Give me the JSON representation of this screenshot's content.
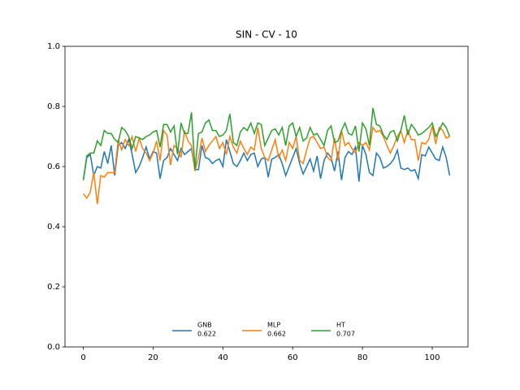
{
  "chart_data": {
    "type": "line",
    "title": "SIN - CV - 10",
    "x": [
      0,
      1,
      2,
      3,
      4,
      5,
      6,
      7,
      8,
      9,
      10,
      11,
      12,
      13,
      14,
      15,
      16,
      17,
      18,
      19,
      20,
      21,
      22,
      23,
      24,
      25,
      26,
      27,
      28,
      29,
      30,
      31,
      32,
      33,
      34,
      35,
      36,
      37,
      38,
      39,
      40,
      41,
      42,
      43,
      44,
      45,
      46,
      47,
      48,
      49,
      50,
      51,
      52,
      53,
      54,
      55,
      56,
      57,
      58,
      59,
      60,
      61,
      62,
      63,
      64,
      65,
      66,
      67,
      68,
      69,
      70,
      71,
      72,
      73,
      74,
      75,
      76,
      77,
      78,
      79,
      80,
      81,
      82,
      83,
      84,
      85,
      86,
      87,
      88,
      89,
      90,
      91,
      92,
      93,
      94,
      95,
      96,
      97,
      98,
      99,
      100,
      101,
      102,
      103,
      104,
      105
    ],
    "series": [
      {
        "name": "GNB",
        "score": 0.622,
        "color": "#1f77b4",
        "values": [
          0.555,
          0.63,
          0.64,
          0.57,
          0.6,
          0.595,
          0.65,
          0.61,
          0.67,
          0.57,
          0.67,
          0.68,
          0.66,
          0.69,
          0.64,
          0.58,
          0.6,
          0.63,
          0.665,
          0.625,
          0.65,
          0.645,
          0.56,
          0.62,
          0.63,
          0.66,
          0.64,
          0.62,
          0.66,
          0.64,
          0.65,
          0.66,
          0.59,
          0.59,
          0.67,
          0.63,
          0.625,
          0.61,
          0.62,
          0.625,
          0.6,
          0.69,
          0.65,
          0.61,
          0.6,
          0.62,
          0.645,
          0.62,
          0.64,
          0.645,
          0.6,
          0.625,
          0.63,
          0.565,
          0.625,
          0.63,
          0.64,
          0.61,
          0.57,
          0.6,
          0.63,
          0.66,
          0.61,
          0.575,
          0.6,
          0.625,
          0.585,
          0.635,
          0.56,
          0.62,
          0.645,
          0.63,
          0.585,
          0.65,
          0.555,
          0.63,
          0.65,
          0.64,
          0.665,
          0.55,
          0.67,
          0.64,
          0.58,
          0.57,
          0.645,
          0.63,
          0.595,
          0.6,
          0.61,
          0.625,
          0.655,
          0.595,
          0.59,
          0.595,
          0.585,
          0.59,
          0.56,
          0.64,
          0.635,
          0.665,
          0.645,
          0.625,
          0.62,
          0.665,
          0.63,
          0.57
        ]
      },
      {
        "name": "MLP",
        "score": 0.662,
        "color": "#ff7f0e",
        "values": [
          0.51,
          0.495,
          0.515,
          0.58,
          0.475,
          0.57,
          0.565,
          0.58,
          0.58,
          0.58,
          0.69,
          0.655,
          0.69,
          0.67,
          0.7,
          0.65,
          0.695,
          0.66,
          0.645,
          0.62,
          0.645,
          0.685,
          0.62,
          0.72,
          0.705,
          0.605,
          0.67,
          0.66,
          0.63,
          0.72,
          0.685,
          0.67,
          0.585,
          0.63,
          0.695,
          0.65,
          0.67,
          0.685,
          0.7,
          0.66,
          0.68,
          0.64,
          0.7,
          0.665,
          0.645,
          0.685,
          0.66,
          0.64,
          0.665,
          0.655,
          0.73,
          0.66,
          0.63,
          0.62,
          0.655,
          0.69,
          0.63,
          0.655,
          0.62,
          0.68,
          0.66,
          0.7,
          0.62,
          0.61,
          0.655,
          0.695,
          0.7,
          0.68,
          0.66,
          0.665,
          0.63,
          0.62,
          0.695,
          0.62,
          0.72,
          0.67,
          0.68,
          0.66,
          0.645,
          0.68,
          0.67,
          0.68,
          0.655,
          0.73,
          0.715,
          0.72,
          0.7,
          0.67,
          0.645,
          0.67,
          0.7,
          0.72,
          0.68,
          0.72,
          0.69,
          0.69,
          0.62,
          0.68,
          0.675,
          0.69,
          0.735,
          0.675,
          0.73,
          0.72,
          0.695,
          0.7
        ]
      },
      {
        "name": "HT",
        "score": 0.707,
        "color": "#2ca02c",
        "values": [
          0.555,
          0.635,
          0.645,
          0.645,
          0.685,
          0.67,
          0.72,
          0.71,
          0.71,
          0.69,
          0.68,
          0.73,
          0.72,
          0.7,
          0.66,
          0.7,
          0.695,
          0.69,
          0.7,
          0.705,
          0.715,
          0.72,
          0.665,
          0.74,
          0.74,
          0.715,
          0.735,
          0.64,
          0.745,
          0.71,
          0.71,
          0.78,
          0.59,
          0.71,
          0.715,
          0.745,
          0.755,
          0.72,
          0.72,
          0.7,
          0.705,
          0.72,
          0.775,
          0.68,
          0.67,
          0.715,
          0.73,
          0.72,
          0.745,
          0.71,
          0.745,
          0.74,
          0.67,
          0.695,
          0.72,
          0.725,
          0.705,
          0.73,
          0.67,
          0.735,
          0.745,
          0.7,
          0.73,
          0.685,
          0.695,
          0.73,
          0.705,
          0.71,
          0.69,
          0.67,
          0.72,
          0.735,
          0.68,
          0.685,
          0.72,
          0.745,
          0.71,
          0.705,
          0.735,
          0.65,
          0.745,
          0.725,
          0.67,
          0.795,
          0.74,
          0.735,
          0.705,
          0.69,
          0.715,
          0.72,
          0.685,
          0.72,
          0.77,
          0.705,
          0.74,
          0.725,
          0.705,
          0.71,
          0.72,
          0.73,
          0.745,
          0.7,
          0.72,
          0.745,
          0.73,
          0.7
        ]
      }
    ],
    "xlim": [
      -5.25,
      110.25
    ],
    "xticks": [
      0,
      20,
      40,
      60,
      80,
      100
    ],
    "ylim": [
      0,
      1
    ],
    "yticks": [
      {
        "value": 0,
        "label": "0.0"
      },
      0.2,
      0.4,
      0.6,
      0.8,
      {
        "value": 1,
        "label": "1.0"
      }
    ],
    "grid": false,
    "legend": "lower center"
  }
}
